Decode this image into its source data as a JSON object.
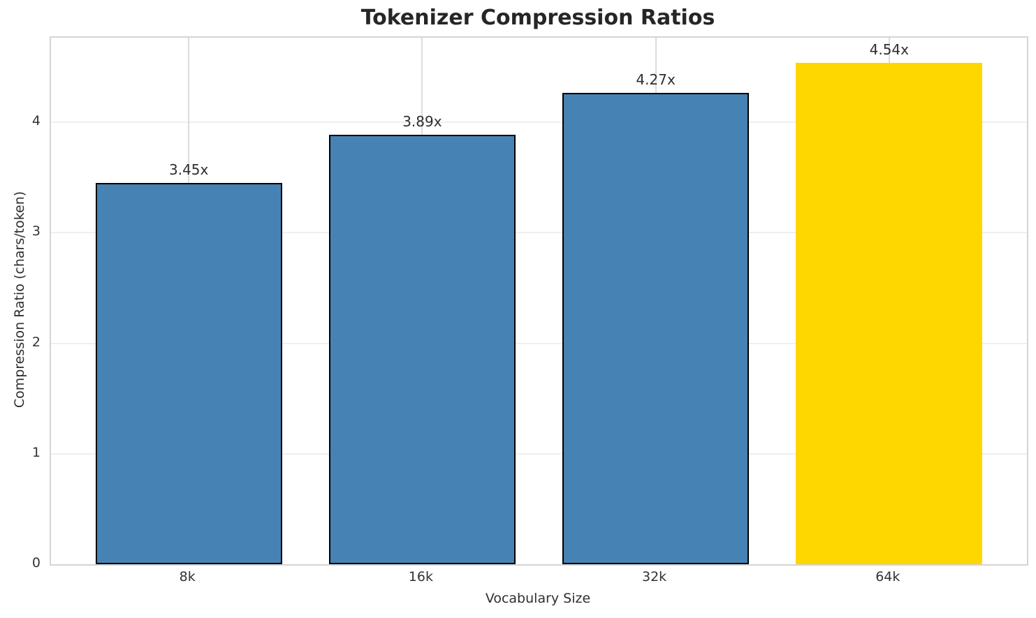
{
  "title": "Tokenizer Compression Ratios",
  "chart_data": {
    "type": "bar",
    "title": "Tokenizer Compression Ratios",
    "xlabel": "Vocabulary Size",
    "ylabel": "Compression Ratio (chars/token)",
    "categories": [
      "8k",
      "16k",
      "32k",
      "64k"
    ],
    "values": [
      3.45,
      3.89,
      4.27,
      4.54
    ],
    "bar_labels": [
      "3.45x",
      "3.89x",
      "4.27x",
      "4.54x"
    ],
    "yticks": [
      0,
      1,
      2,
      3,
      4
    ],
    "ylim": [
      0,
      4.767
    ],
    "bar_colors": [
      "#4682B4",
      "#4682B4",
      "#4682B4",
      "#FFD700"
    ],
    "bar_edge_colors": [
      "#000000",
      "#000000",
      "#000000",
      "none"
    ],
    "highlight_index": 3,
    "grid": true,
    "legend": "none",
    "background_color": "#ffffff",
    "spine_color": "#d5d5d5"
  }
}
